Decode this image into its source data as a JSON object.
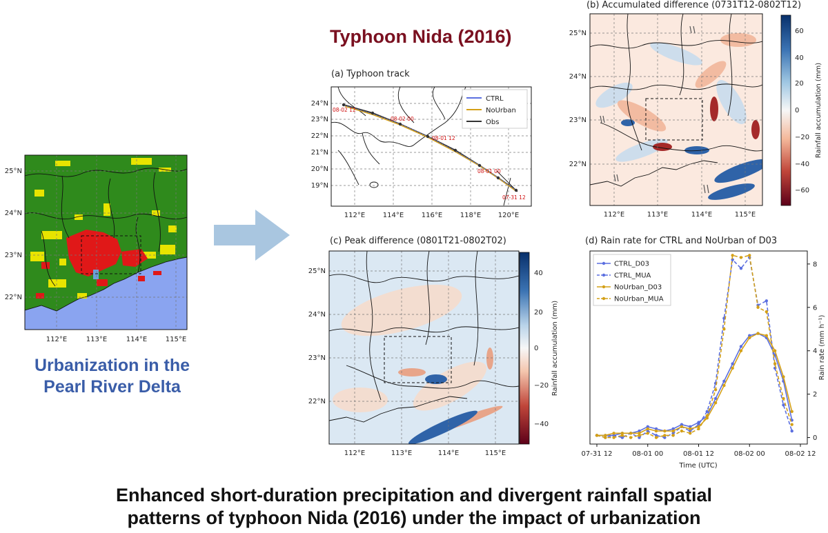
{
  "title": "Typhoon Nida (2016)",
  "left_caption_line1": "Urbanization in the",
  "left_caption_line2": "Pearl River Delta",
  "bottom_caption_line1": "Enhanced short-duration precipitation and divergent rainfall spatial",
  "bottom_caption_line2": "patterns of typhoon Nida (2016) under the impact of urbanization",
  "colors": {
    "title": "#7a1020",
    "caption": "#3a5da8",
    "arrow": "#a9c6e0",
    "ctrl": "#5b6fe0",
    "nourban": "#d4a017",
    "obs": "#333333"
  },
  "landuse_map": {
    "lon_ticks": [
      "112°E",
      "113°E",
      "114°E",
      "115°E"
    ],
    "lat_ticks": [
      "25°N",
      "24°N",
      "23°N",
      "22°N"
    ]
  },
  "panel_a": {
    "title": "(a) Typhoon track",
    "lon_ticks": [
      "112°E",
      "114°E",
      "116°E",
      "118°E",
      "120°E"
    ],
    "lat_ticks": [
      "24°N",
      "23°N",
      "22°N",
      "21°N",
      "20°N",
      "19°N"
    ],
    "legend": [
      "CTRL",
      "NoUrban",
      "Obs"
    ],
    "time_labels": [
      "08-02 12",
      "08-02 00",
      "08-01 12",
      "08-01 00",
      "07-31 12"
    ]
  },
  "panel_b": {
    "title": "(b) Accumulated difference (0731T12-0802T12)",
    "lon_ticks": [
      "112°E",
      "113°E",
      "114°E",
      "115°E"
    ],
    "lat_ticks": [
      "25°N",
      "24°N",
      "23°N",
      "22°N"
    ],
    "colorbar_label": "Rainfall accumulation (mm)",
    "colorbar_ticks": [
      "60",
      "40",
      "20",
      "0",
      "−20",
      "−40",
      "−60"
    ]
  },
  "panel_c": {
    "title": "(c) Peak difference (0801T21-0802T02)",
    "lon_ticks": [
      "112°E",
      "113°E",
      "114°E",
      "115°E"
    ],
    "lat_ticks": [
      "25°N",
      "24°N",
      "23°N",
      "22°N"
    ],
    "colorbar_label": "Rainfall accumulation (mm)",
    "colorbar_ticks": [
      "40",
      "20",
      "0",
      "−20",
      "−40"
    ]
  },
  "chart_data": {
    "type": "line",
    "title": "(d) Rain rate for CTRL and NoUrban of D03",
    "xlabel": "Time (UTC)",
    "ylabel": "Rain rate (mm h⁻¹)",
    "x_ticks": [
      "07-31 12",
      "08-01 00",
      "08-01 12",
      "08-02 00",
      "08-02 12"
    ],
    "y_ticks": [
      "0",
      "2",
      "4",
      "6",
      "8"
    ],
    "x": [
      "07-31 12",
      "07-31 14",
      "07-31 16",
      "07-31 18",
      "07-31 20",
      "07-31 22",
      "08-01 00",
      "08-01 02",
      "08-01 04",
      "08-01 06",
      "08-01 08",
      "08-01 10",
      "08-01 12",
      "08-01 14",
      "08-01 16",
      "08-01 18",
      "08-01 20",
      "08-01 22",
      "08-02 00",
      "08-02 02",
      "08-02 04",
      "08-02 06",
      "08-02 08",
      "08-02 10"
    ],
    "xlim_hours": [
      0,
      48
    ],
    "ylim": [
      -0.3,
      8.6
    ],
    "legend_position": "top-left",
    "series": [
      {
        "name": "CTRL_D03",
        "style": "solid",
        "color": "#5b6fe0",
        "values": [
          0.1,
          0.1,
          0.1,
          0.2,
          0.2,
          0.3,
          0.5,
          0.4,
          0.3,
          0.4,
          0.6,
          0.5,
          0.7,
          1.0,
          1.8,
          2.6,
          3.4,
          4.2,
          4.7,
          4.8,
          4.6,
          3.8,
          2.6,
          0.8
        ]
      },
      {
        "name": "CTRL_MUA",
        "style": "dashed",
        "color": "#5b6fe0",
        "values": [
          0.1,
          0.0,
          0.1,
          0.0,
          0.2,
          0.0,
          0.3,
          0.1,
          0.0,
          0.2,
          0.5,
          0.3,
          0.6,
          1.2,
          2.5,
          5.5,
          8.2,
          7.8,
          8.3,
          6.1,
          6.3,
          3.2,
          1.5,
          0.3
        ]
      },
      {
        "name": "NoUrban_D03",
        "style": "solid",
        "color": "#d4a017",
        "values": [
          0.1,
          0.1,
          0.2,
          0.2,
          0.2,
          0.2,
          0.4,
          0.3,
          0.3,
          0.3,
          0.5,
          0.4,
          0.5,
          0.9,
          1.6,
          2.4,
          3.2,
          4.0,
          4.6,
          4.8,
          4.7,
          4.0,
          2.8,
          1.2
        ]
      },
      {
        "name": "NoUrban_MUA",
        "style": "dashed",
        "color": "#d4a017",
        "values": [
          0.1,
          0.0,
          0.0,
          0.1,
          0.0,
          0.1,
          0.2,
          0.0,
          0.1,
          0.1,
          0.3,
          0.2,
          0.4,
          1.0,
          2.2,
          5.0,
          8.4,
          8.3,
          8.4,
          6.0,
          5.8,
          3.4,
          1.8,
          0.6
        ]
      }
    ]
  }
}
